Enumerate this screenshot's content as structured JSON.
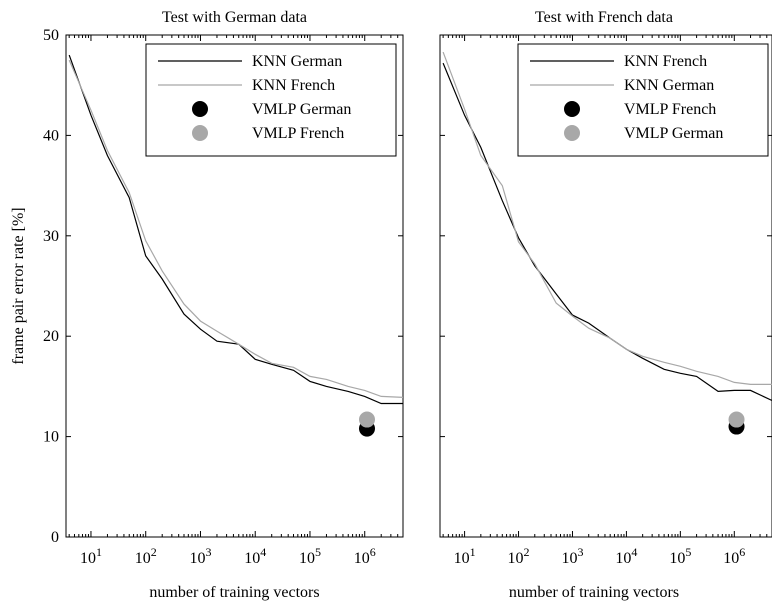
{
  "chart_data": [
    {
      "type": "line",
      "title": "Test with German data",
      "xlabel": "number of training vectors",
      "ylabel": "frame pair error rate [%]",
      "xscale": "log",
      "xlim": [
        3.5,
        5000000
      ],
      "ylim": [
        0,
        50
      ],
      "x_ticks": [
        {
          "base": "10",
          "exp": "1",
          "value": 10
        },
        {
          "base": "10",
          "exp": "2",
          "value": 100
        },
        {
          "base": "10",
          "exp": "3",
          "value": 1000
        },
        {
          "base": "10",
          "exp": "4",
          "value": 10000
        },
        {
          "base": "10",
          "exp": "5",
          "value": 100000
        },
        {
          "base": "10",
          "exp": "6",
          "value": 1000000
        }
      ],
      "y_ticks": [
        "0",
        "10",
        "20",
        "30",
        "40",
        "50"
      ],
      "legend_position": "top-right",
      "series": [
        {
          "name": "KNN German",
          "kind": "line",
          "color": "#000000",
          "x": [
            4,
            10,
            20,
            50,
            100,
            200,
            500,
            1000,
            2000,
            5000,
            10000,
            20000,
            50000,
            100000,
            200000,
            500000,
            1000000,
            2000000,
            5000000
          ],
          "y": [
            48,
            42,
            38,
            33.8,
            28,
            25.7,
            22.2,
            20.7,
            19.5,
            19.2,
            17.7,
            17.2,
            16.6,
            15.5,
            15,
            14.5,
            14,
            13.3,
            13.3
          ]
        },
        {
          "name": "KNN French",
          "kind": "line",
          "color": "#a8a8a8",
          "x": [
            4,
            10,
            20,
            50,
            100,
            200,
            500,
            1000,
            2000,
            5000,
            10000,
            20000,
            50000,
            100000,
            200000,
            500000,
            1000000,
            2000000,
            5000000
          ],
          "y": [
            47.5,
            42.5,
            38.5,
            34.3,
            29.5,
            26.5,
            23.2,
            21.5,
            20.5,
            19.2,
            18.2,
            17.3,
            16.9,
            16,
            15.7,
            15,
            14.6,
            14,
            13.9
          ]
        },
        {
          "name": "VMLP German",
          "kind": "point",
          "color": "#000000",
          "x": [
            1100000
          ],
          "y": [
            10.8
          ]
        },
        {
          "name": "VMLP French",
          "kind": "point",
          "color": "#a8a8a8",
          "x": [
            1100000
          ],
          "y": [
            11.7
          ]
        }
      ]
    },
    {
      "type": "line",
      "title": "Test with French data",
      "xlabel": "number of training vectors",
      "ylabel": "",
      "xscale": "log",
      "xlim": [
        3.5,
        5000000
      ],
      "ylim": [
        0,
        50
      ],
      "x_ticks": [
        {
          "base": "10",
          "exp": "1",
          "value": 10
        },
        {
          "base": "10",
          "exp": "2",
          "value": 100
        },
        {
          "base": "10",
          "exp": "3",
          "value": 1000
        },
        {
          "base": "10",
          "exp": "4",
          "value": 10000
        },
        {
          "base": "10",
          "exp": "5",
          "value": 100000
        },
        {
          "base": "10",
          "exp": "6",
          "value": 1000000
        }
      ],
      "y_ticks": [],
      "legend_position": "top-right",
      "series": [
        {
          "name": "KNN French",
          "kind": "line",
          "color": "#000000",
          "x": [
            4,
            10,
            20,
            50,
            100,
            200,
            500,
            1000,
            2000,
            5000,
            10000,
            20000,
            50000,
            100000,
            200000,
            500000,
            1000000,
            2000000,
            5000000
          ],
          "y": [
            47.2,
            42,
            38.8,
            33.5,
            29.8,
            27,
            24.2,
            22.1,
            21.3,
            19.8,
            18.7,
            17.8,
            16.7,
            16.3,
            16,
            14.5,
            14.6,
            14.6,
            13.6
          ]
        },
        {
          "name": "KNN German",
          "kind": "line",
          "color": "#a8a8a8",
          "x": [
            4,
            10,
            20,
            50,
            100,
            200,
            500,
            1000,
            2000,
            5000,
            10000,
            20000,
            50000,
            100000,
            200000,
            500000,
            1000000,
            2000000,
            5000000
          ],
          "y": [
            48.3,
            42.6,
            38,
            35,
            29.4,
            27.2,
            23.3,
            22,
            20.8,
            19.8,
            18.7,
            18,
            17.4,
            17,
            16.5,
            16,
            15.4,
            15.2,
            15.2
          ]
        },
        {
          "name": "VMLP French",
          "kind": "point",
          "color": "#000000",
          "x": [
            1100000
          ],
          "y": [
            11
          ]
        },
        {
          "name": "VMLP German",
          "kind": "point",
          "color": "#a8a8a8",
          "x": [
            1100000
          ],
          "y": [
            11.7
          ]
        }
      ]
    }
  ]
}
